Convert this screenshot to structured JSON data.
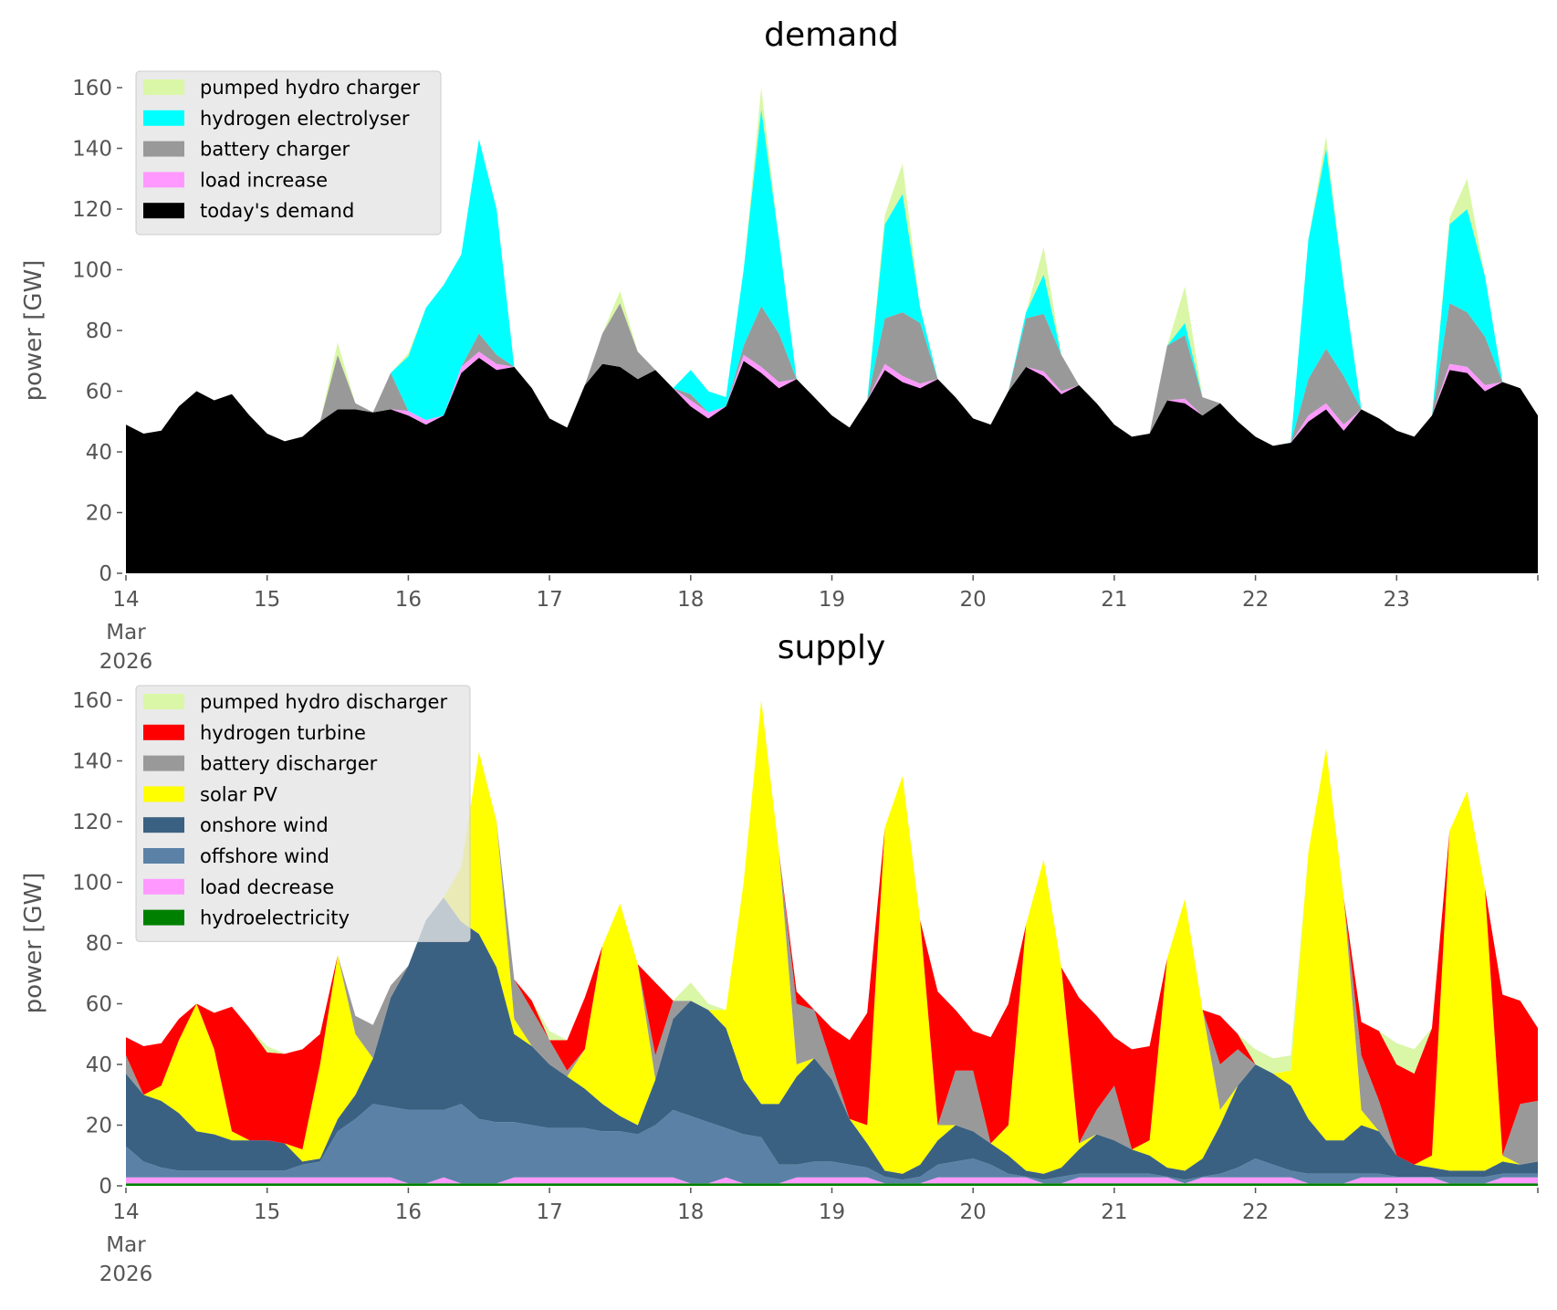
{
  "chart_data": [
    {
      "type": "area",
      "stacked": true,
      "title": "demand",
      "ylabel": "power [GW]",
      "xlabel": "",
      "ylim": [
        0,
        165
      ],
      "yticks": [
        0,
        20,
        40,
        60,
        80,
        100,
        120,
        140,
        160
      ],
      "xticks": [
        "14",
        "15",
        "16",
        "17",
        "18",
        "19",
        "20",
        "21",
        "22",
        "23"
      ],
      "xtick_first_extra": [
        "Mar",
        "2026"
      ],
      "start": "14 Mar 2026",
      "time_step_hours": 3,
      "grid": false,
      "legend_position": "top-left",
      "legend_order": [
        "pumped hydro charger",
        "hydrogen electrolyser",
        "battery charger",
        "load increase",
        "today's demand"
      ],
      "series": [
        {
          "name": "today's demand",
          "color": "#000000",
          "values": [
            49,
            46,
            47,
            55,
            60,
            57,
            59,
            52,
            46,
            43.5,
            45,
            50,
            54,
            54,
            53,
            54,
            52,
            49,
            52,
            66,
            71,
            67,
            68,
            61,
            51,
            48,
            62,
            69,
            68,
            64,
            67,
            61,
            55,
            51,
            55,
            70,
            66,
            61,
            64,
            58,
            52,
            48,
            57,
            67,
            63,
            61,
            64,
            58,
            51,
            49,
            60,
            68,
            65,
            59,
            62,
            56,
            49,
            45,
            46,
            57,
            56,
            52,
            56,
            50,
            45,
            42,
            43,
            50,
            54,
            47,
            54,
            51,
            47,
            45,
            52,
            67,
            66,
            60,
            63,
            61,
            52
          ]
        },
        {
          "name": "load increase",
          "color": "#ff99ff",
          "values": [
            0,
            0,
            0,
            0,
            0,
            0,
            0,
            0,
            0,
            0,
            0,
            0,
            0,
            0,
            0,
            0,
            1.5,
            1.5,
            0,
            2,
            2,
            2,
            0,
            0,
            0,
            0,
            0,
            0,
            0,
            0,
            0,
            0,
            2,
            2,
            0,
            2,
            2,
            2,
            0,
            0,
            0,
            0,
            0,
            2,
            2,
            1.5,
            0,
            0,
            0,
            0,
            0,
            0,
            1.5,
            1,
            0,
            0,
            0,
            0,
            0,
            0,
            1.5,
            0,
            0,
            0,
            0,
            0,
            0,
            2,
            2,
            2,
            0,
            0,
            0,
            0,
            0,
            2,
            2,
            2,
            0,
            0,
            0
          ]
        },
        {
          "name": "battery charger",
          "color": "#999999",
          "values": [
            0,
            0,
            0,
            0,
            0,
            0,
            0,
            0,
            0,
            0,
            0,
            0,
            18,
            2,
            0,
            12,
            0,
            0,
            0,
            0,
            6,
            3,
            0,
            0,
            0,
            0,
            0,
            10,
            21,
            9,
            0,
            0,
            2,
            0,
            0,
            3,
            20,
            16,
            0,
            0,
            0,
            0,
            0,
            15,
            21,
            20,
            0,
            0,
            0,
            0,
            0,
            16,
            19,
            12,
            0,
            0,
            0,
            0,
            0,
            18,
            21,
            6,
            0,
            0,
            0,
            0,
            0,
            12,
            18,
            16,
            0,
            0,
            0,
            0,
            0,
            20,
            18,
            16,
            0,
            0,
            0
          ]
        },
        {
          "name": "hydrogen electrolyser",
          "color": "#00ffff",
          "values": [
            0,
            0,
            0,
            0,
            0,
            0,
            0,
            0,
            0,
            0,
            0,
            0,
            0,
            0,
            0,
            0,
            18,
            37,
            43,
            37,
            64,
            48,
            0,
            0,
            0,
            0,
            0,
            0,
            0,
            0,
            0,
            0,
            8,
            7,
            3,
            25,
            65,
            31,
            0,
            0,
            0,
            0,
            0,
            31,
            39,
            5,
            0,
            0,
            0,
            0,
            0,
            2,
            13,
            0,
            0,
            0,
            0,
            0,
            0,
            0,
            4,
            0,
            0,
            0,
            0,
            0,
            0,
            46,
            66,
            30,
            0,
            0,
            0,
            0,
            0,
            26,
            34,
            20,
            0,
            0,
            0
          ]
        },
        {
          "name": "pumped hydro charger",
          "color": "#d9f7a6",
          "values": [
            0,
            0,
            0,
            0,
            0,
            0,
            0,
            0,
            0,
            0,
            0,
            0,
            4,
            0,
            0,
            0,
            1,
            0,
            0,
            0,
            0,
            0,
            0,
            0,
            0,
            0,
            0,
            0,
            4,
            0,
            0,
            0,
            0,
            0,
            0,
            0,
            7,
            0,
            0,
            0,
            0,
            0,
            0,
            3,
            10,
            0,
            0,
            0,
            0,
            0,
            0,
            0,
            9,
            0,
            0,
            0,
            0,
            0,
            0,
            0,
            12,
            0,
            0,
            0,
            0,
            0,
            0,
            0,
            4,
            0,
            0,
            0,
            0,
            0,
            0,
            2,
            10,
            0,
            0,
            0,
            0
          ]
        }
      ]
    },
    {
      "type": "area",
      "stacked": true,
      "title": "supply",
      "ylabel": "power [GW]",
      "xlabel": "",
      "ylim": [
        0,
        165
      ],
      "yticks": [
        0,
        20,
        40,
        60,
        80,
        100,
        120,
        140,
        160
      ],
      "xticks": [
        "14",
        "15",
        "16",
        "17",
        "18",
        "19",
        "20",
        "21",
        "22",
        "23"
      ],
      "xtick_first_extra": [
        "Mar",
        "2026"
      ],
      "start": "14 Mar 2026",
      "time_step_hours": 3,
      "grid": false,
      "legend_position": "top-left",
      "legend_order": [
        "pumped hydro discharger",
        "hydrogen turbine",
        "battery discharger",
        "solar PV",
        "onshore wind",
        "offshore wind",
        "load decrease",
        "hydroelectricity"
      ],
      "series": [
        {
          "name": "hydroelectricity",
          "color": "#008000",
          "values": [
            0.8,
            0.8,
            0.8,
            0.8,
            0.8,
            0.8,
            0.8,
            0.8,
            0.8,
            0.8,
            0.8,
            0.8,
            0.8,
            0.8,
            0.8,
            0.8,
            0.8,
            0.8,
            0.8,
            0.8,
            0.8,
            0.8,
            0.8,
            0.8,
            0.8,
            0.8,
            0.8,
            0.8,
            0.8,
            0.8,
            0.8,
            0.8,
            0.8,
            0.8,
            0.8,
            0.8,
            0.8,
            0.8,
            0.8,
            0.8,
            0.8,
            0.8,
            0.8,
            0.8,
            0.8,
            0.8,
            0.8,
            0.8,
            0.8,
            0.8,
            0.8,
            0.8,
            0.8,
            0.8,
            0.8,
            0.8,
            0.8,
            0.8,
            0.8,
            0.8,
            0.8,
            0.8,
            0.8,
            0.8,
            0.8,
            0.8,
            0.8,
            0.8,
            0.8,
            0.8,
            0.8,
            0.8,
            0.8,
            0.8,
            0.8,
            0.8,
            0.8,
            0.8,
            0.8,
            0.8,
            0.8
          ]
        },
        {
          "name": "load decrease",
          "color": "#ff99ff",
          "values": [
            2,
            2,
            2,
            2,
            2,
            2,
            2,
            2,
            2,
            2,
            2,
            2,
            2,
            2,
            2,
            2,
            0,
            0,
            2,
            0,
            0,
            0,
            2,
            2,
            2,
            2,
            2,
            2,
            2,
            2,
            2,
            2,
            0,
            0,
            2,
            0,
            0,
            0,
            2,
            2,
            2,
            2,
            2,
            0,
            0,
            0,
            2,
            2,
            2,
            2,
            2,
            2,
            0,
            0,
            2,
            2,
            2,
            2,
            2,
            2,
            0,
            2,
            2,
            2,
            2,
            2,
            2,
            0,
            0,
            0,
            2,
            2,
            2,
            2,
            2,
            0,
            0,
            0,
            2,
            2,
            2
          ]
        },
        {
          "name": "offshore wind",
          "color": "#5b82a6",
          "values": [
            10.2,
            5.2,
            3.2,
            2.2,
            2.2,
            2.2,
            2.2,
            2.2,
            2.2,
            2.2,
            4.2,
            5.2,
            15.2,
            19.2,
            24.2,
            23.2,
            24.2,
            24.2,
            22.2,
            26.2,
            21.2,
            20.2,
            18.2,
            17.2,
            16.2,
            16.2,
            16.2,
            15.2,
            15.2,
            14.2,
            17.2,
            22.2,
            22.2,
            20.2,
            16.2,
            16.2,
            15.2,
            6.2,
            4.2,
            5.2,
            5.2,
            4.2,
            3.2,
            2.2,
            1.2,
            2.2,
            4.2,
            5.2,
            6.2,
            4.2,
            1.2,
            0.2,
            1.2,
            2.2,
            1.2,
            1.2,
            1.2,
            1.2,
            1.2,
            0.2,
            1.2,
            0.2,
            1.2,
            3.2,
            6.2,
            4.2,
            2.2,
            3.2,
            3.2,
            3.2,
            1.2,
            1.2,
            0.2,
            0.2,
            0.2,
            2.2,
            2.2,
            2.2,
            1.2,
            1.2,
            1.2
          ]
        },
        {
          "name": "onshore wind",
          "color": "#3b6182",
          "values": [
            24,
            22,
            22,
            19,
            13,
            12,
            10,
            10,
            10,
            9,
            1,
            1,
            4,
            8,
            15,
            36,
            47.5,
            62.5,
            70,
            60,
            61,
            51,
            29,
            26,
            21,
            17,
            13,
            9,
            5,
            3,
            15,
            30,
            38,
            37,
            33,
            18,
            11,
            20,
            29,
            34,
            27,
            15,
            8,
            2,
            2,
            4,
            8,
            12,
            9,
            7,
            6,
            2,
            2,
            3,
            8,
            13,
            11,
            8,
            6,
            3,
            3,
            6,
            16,
            27,
            31,
            30,
            28,
            18,
            11,
            11,
            16,
            14,
            7,
            4,
            3,
            2,
            2,
            2,
            4,
            3,
            4
          ]
        },
        {
          "name": "solar PV",
          "color": "#ffff00",
          "values": [
            0,
            0,
            5,
            24,
            42,
            28,
            3,
            0,
            0,
            0,
            4,
            31,
            54,
            20,
            0,
            0,
            0,
            0,
            0,
            18,
            60,
            48,
            5,
            0,
            0,
            0,
            13,
            52,
            70,
            53,
            0,
            0,
            0,
            0,
            6,
            65,
            133,
            83,
            4,
            0,
            0,
            0,
            6,
            113,
            131,
            80.5,
            5,
            0,
            0,
            0,
            10,
            81,
            103.5,
            66,
            2,
            0,
            0,
            0,
            5,
            69,
            89.5,
            49,
            5,
            0,
            0,
            0,
            5,
            88,
            129,
            80,
            5,
            0,
            0,
            0,
            4,
            112,
            125,
            93,
            2,
            0,
            0
          ]
        },
        {
          "name": "battery discharger",
          "color": "#999999",
          "values": [
            6,
            0,
            0,
            0,
            0,
            0,
            0,
            0,
            0,
            0,
            0,
            0,
            0,
            6,
            11,
            4,
            0,
            0,
            0,
            0,
            0,
            0,
            13,
            12,
            8,
            2,
            0,
            0,
            0,
            0,
            8,
            6,
            0,
            0,
            0,
            0,
            0,
            0,
            20,
            16,
            5,
            0,
            0,
            0,
            0,
            0,
            0,
            18,
            20,
            0,
            0,
            0,
            0,
            0,
            0,
            8,
            18,
            0,
            0,
            0,
            0,
            0,
            15,
            12,
            0,
            0,
            0,
            0,
            0,
            0,
            18,
            10,
            0,
            0,
            0,
            0,
            0,
            0,
            0,
            20,
            20
          ]
        },
        {
          "name": "hydrogen turbine",
          "color": "#ff0000",
          "values": [
            6,
            16,
            14,
            7,
            0,
            12,
            41,
            37,
            29,
            29.5,
            33,
            10,
            0,
            0,
            0,
            0,
            0,
            0,
            0,
            0,
            0,
            0,
            0,
            3,
            0,
            10,
            17,
            0,
            0,
            0,
            24,
            0,
            0,
            0,
            0,
            0,
            0,
            0,
            4,
            0,
            12,
            26,
            37,
            0,
            0,
            0,
            44,
            20,
            13,
            35,
            40,
            0,
            0,
            0,
            48,
            31,
            16,
            33,
            31,
            0,
            0,
            0,
            16,
            5,
            0,
            0,
            0,
            0,
            0,
            0,
            11,
            23,
            30,
            30,
            42,
            0,
            0,
            0,
            53,
            34,
            24
          ]
        },
        {
          "name": "pumped hydro discharger",
          "color": "#d9f7a6",
          "values": [
            0,
            0,
            0,
            0,
            0,
            0,
            0,
            0,
            2,
            0,
            0,
            0,
            0,
            0,
            0,
            0,
            0,
            0,
            0,
            0,
            0,
            0,
            0,
            0,
            3,
            0,
            0,
            0,
            0,
            0,
            0,
            0,
            6,
            2,
            0,
            0,
            0,
            0,
            0,
            0,
            0,
            0,
            0,
            0,
            0,
            0,
            0,
            0,
            0,
            0,
            0,
            0,
            0,
            0,
            0,
            0,
            0,
            0,
            0,
            0,
            0,
            0,
            0,
            0,
            5,
            5,
            5,
            0,
            0,
            0,
            0,
            0,
            7,
            8,
            0,
            0,
            0,
            0,
            0,
            0,
            0
          ]
        }
      ]
    }
  ]
}
